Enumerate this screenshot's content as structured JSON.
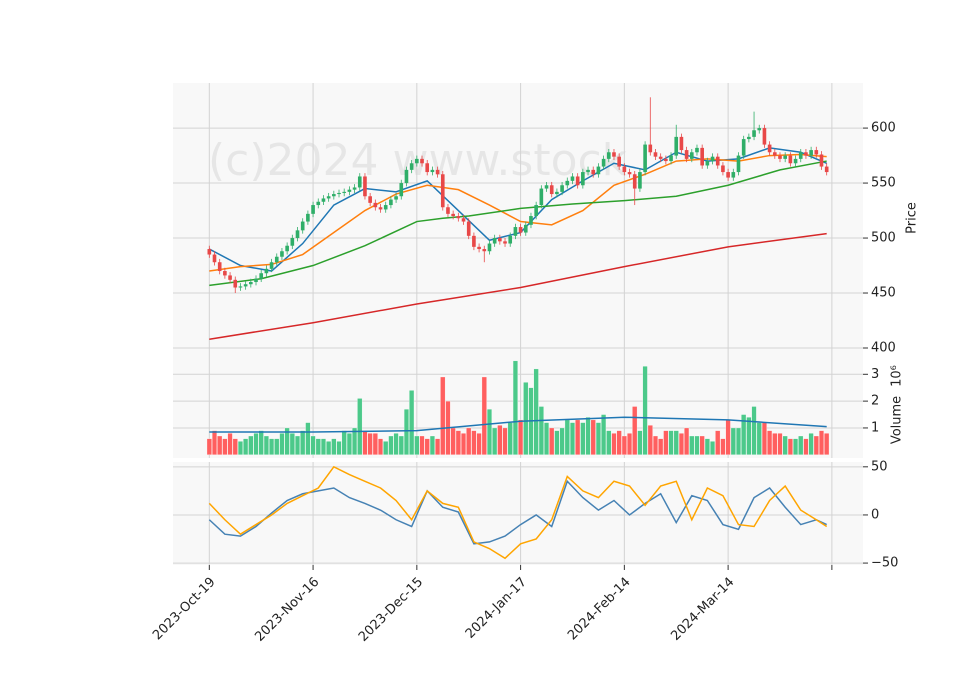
{
  "chart_data": {
    "type": "candlestick",
    "watermark": "(c)2024 www.stock",
    "xlim": [
      -7,
      126
    ],
    "xticks": [
      {
        "value": 0,
        "label": "2023-Oct-19"
      },
      {
        "value": 20,
        "label": "2023-Nov-16"
      },
      {
        "value": 40,
        "label": "2023-Dec-15"
      },
      {
        "value": 60,
        "label": "2024-Jan-17"
      },
      {
        "value": 80,
        "label": "2024-Feb-14"
      },
      {
        "value": 100,
        "label": "2024-Mar-14"
      },
      {
        "value": 120,
        "label": null
      }
    ],
    "ylabel": "Price",
    "ylim": [
      400,
      641
    ],
    "yticks": [
      400,
      450,
      500,
      550,
      600
    ],
    "grid": true,
    "up_color": "#2fae68",
    "down_color": "#e84848",
    "open": [
      490,
      485,
      478,
      470,
      466,
      462,
      455,
      456,
      458,
      460,
      463,
      468,
      472,
      478,
      483,
      488,
      493,
      500,
      507,
      515,
      522,
      530,
      533,
      536,
      538,
      540,
      541,
      542,
      544,
      546,
      556,
      538,
      532,
      528,
      526,
      530,
      535,
      538,
      550,
      562,
      568,
      572,
      568,
      560,
      562,
      558,
      528,
      522,
      520,
      518,
      515,
      502,
      492,
      490,
      488,
      495,
      500,
      497,
      495,
      502,
      510,
      505,
      512,
      520,
      530,
      545,
      548,
      540,
      542,
      548,
      552,
      556,
      548,
      560,
      562,
      558,
      565,
      572,
      578,
      574,
      565,
      560,
      558,
      545,
      560,
      585,
      578,
      574,
      572,
      570,
      575,
      592,
      580,
      572,
      578,
      582,
      566,
      570,
      574,
      566,
      560,
      555,
      560,
      575,
      590,
      592,
      598,
      600,
      585,
      578,
      575,
      572,
      575,
      568,
      572,
      578,
      575,
      580,
      576,
      565
    ],
    "high": [
      493,
      488,
      481,
      473,
      469,
      465,
      459,
      461,
      463,
      466,
      471,
      475,
      481,
      486,
      491,
      496,
      503,
      510,
      518,
      525,
      533,
      536,
      539,
      541,
      543,
      544,
      545,
      547,
      549,
      559,
      559,
      541,
      535,
      531,
      533,
      538,
      541,
      553,
      565,
      571,
      575,
      575,
      571,
      565,
      565,
      561,
      531,
      525,
      523,
      521,
      518,
      505,
      495,
      493,
      498,
      503,
      503,
      500,
      505,
      513,
      513,
      515,
      523,
      533,
      548,
      551,
      551,
      545,
      551,
      555,
      559,
      559,
      563,
      565,
      565,
      568,
      575,
      581,
      581,
      577,
      568,
      563,
      561,
      563,
      588,
      628,
      581,
      577,
      575,
      578,
      603,
      595,
      583,
      581,
      585,
      585,
      573,
      577,
      577,
      569,
      563,
      563,
      578,
      593,
      595,
      615,
      603,
      603,
      588,
      581,
      578,
      578,
      578,
      575,
      581,
      581,
      583,
      583,
      579,
      568
    ],
    "low": [
      482,
      475,
      467,
      463,
      459,
      450,
      452,
      453,
      455,
      457,
      460,
      465,
      469,
      475,
      480,
      485,
      490,
      497,
      504,
      512,
      519,
      527,
      530,
      533,
      535,
      537,
      538,
      539,
      541,
      543,
      535,
      529,
      525,
      523,
      523,
      527,
      532,
      535,
      547,
      559,
      565,
      565,
      557,
      557,
      555,
      525,
      519,
      517,
      515,
      512,
      499,
      489,
      487,
      478,
      485,
      492,
      494,
      492,
      492,
      499,
      502,
      502,
      509,
      517,
      527,
      542,
      537,
      537,
      539,
      545,
      549,
      545,
      545,
      557,
      555,
      555,
      562,
      569,
      571,
      562,
      557,
      555,
      530,
      542,
      557,
      575,
      571,
      569,
      567,
      567,
      572,
      577,
      569,
      569,
      575,
      563,
      563,
      567,
      563,
      557,
      552,
      552,
      557,
      572,
      587,
      589,
      595,
      582,
      575,
      572,
      569,
      569,
      565,
      565,
      569,
      572,
      572,
      573,
      562,
      557
    ],
    "close": [
      485,
      478,
      470,
      466,
      462,
      455,
      456,
      458,
      460,
      463,
      468,
      472,
      478,
      483,
      488,
      493,
      500,
      507,
      515,
      522,
      530,
      533,
      536,
      538,
      540,
      541,
      542,
      544,
      546,
      556,
      538,
      532,
      528,
      526,
      530,
      535,
      538,
      550,
      562,
      568,
      572,
      568,
      560,
      562,
      558,
      528,
      522,
      520,
      518,
      515,
      502,
      492,
      490,
      488,
      495,
      500,
      497,
      495,
      502,
      510,
      505,
      512,
      520,
      530,
      545,
      548,
      540,
      542,
      548,
      552,
      556,
      548,
      560,
      562,
      558,
      565,
      572,
      578,
      574,
      565,
      560,
      558,
      545,
      560,
      585,
      578,
      574,
      572,
      570,
      575,
      592,
      580,
      572,
      578,
      582,
      566,
      570,
      574,
      566,
      560,
      555,
      560,
      575,
      590,
      592,
      598,
      600,
      585,
      578,
      575,
      572,
      575,
      568,
      572,
      578,
      575,
      580,
      576,
      565,
      560
    ],
    "moving_averages": [
      {
        "color": "#1f77b4",
        "x": [
          0,
          6,
          12,
          18,
          24,
          30,
          36,
          42,
          48,
          54,
          60,
          66,
          72,
          78,
          84,
          90,
          96,
          102,
          108,
          114,
          119
        ],
        "values": [
          490,
          475,
          470,
          495,
          530,
          545,
          542,
          552,
          525,
          498,
          505,
          535,
          552,
          568,
          562,
          578,
          570,
          572,
          582,
          578,
          568
        ]
      },
      {
        "color": "#ff7f0e",
        "x": [
          0,
          6,
          12,
          18,
          24,
          30,
          36,
          42,
          48,
          54,
          60,
          66,
          72,
          78,
          84,
          90,
          96,
          102,
          108,
          114,
          119
        ],
        "values": [
          470,
          474,
          476,
          485,
          505,
          525,
          540,
          548,
          544,
          530,
          515,
          512,
          525,
          548,
          558,
          570,
          572,
          570,
          575,
          576,
          574
        ]
      },
      {
        "color": "#2ca02c",
        "x": [
          0,
          10,
          20,
          30,
          40,
          45,
          50,
          60,
          70,
          80,
          90,
          100,
          110,
          119
        ],
        "values": [
          457,
          463,
          475,
          493,
          515,
          518,
          520,
          527,
          531,
          534,
          538,
          548,
          562,
          570
        ]
      },
      {
        "color": "#d62728",
        "x": [
          0,
          20,
          40,
          60,
          80,
          100,
          119
        ],
        "values": [
          408,
          423,
          440,
          455,
          474,
          492,
          504
        ]
      }
    ],
    "volume": {
      "ylabel": "Volume",
      "offset": "10⁶",
      "ylim": [
        -0.12,
        3.98
      ],
      "yticks": [
        1,
        2,
        3
      ],
      "up_color": "#4cc98a",
      "down_color": "#ff5f5f",
      "values": [
        0.6,
        0.9,
        0.7,
        0.6,
        0.8,
        0.6,
        0.5,
        0.6,
        0.7,
        0.8,
        0.9,
        0.7,
        0.6,
        0.6,
        0.8,
        1.0,
        0.8,
        0.7,
        0.9,
        1.2,
        0.7,
        0.6,
        0.6,
        0.5,
        0.6,
        0.5,
        0.9,
        0.8,
        1.0,
        2.1,
        0.9,
        0.8,
        0.8,
        0.6,
        0.5,
        0.7,
        0.8,
        0.7,
        1.7,
        2.4,
        0.7,
        0.7,
        0.6,
        0.7,
        0.6,
        2.9,
        2.0,
        1.0,
        0.9,
        0.8,
        1.0,
        0.9,
        0.8,
        2.9,
        1.7,
        1.0,
        1.1,
        1.0,
        1.2,
        3.5,
        1.3,
        2.7,
        2.5,
        3.2,
        1.8,
        1.2,
        1.0,
        0.9,
        1.0,
        1.3,
        1.2,
        1.3,
        1.2,
        1.4,
        1.3,
        1.2,
        1.5,
        0.9,
        0.8,
        0.9,
        0.7,
        0.8,
        1.8,
        0.9,
        3.3,
        1.1,
        0.7,
        0.6,
        0.9,
        0.9,
        0.9,
        0.8,
        1.0,
        0.7,
        0.7,
        0.7,
        0.6,
        0.5,
        0.9,
        0.6,
        1.3,
        1.0,
        1.0,
        1.5,
        1.4,
        1.8,
        1.2,
        1.2,
        0.9,
        0.8,
        0.8,
        0.7,
        0.6,
        0.6,
        0.7,
        0.6,
        0.8,
        0.7,
        0.9,
        0.8
      ],
      "average": {
        "color": "#1f77b4",
        "x": [
          0,
          20,
          40,
          60,
          80,
          100,
          119
        ],
        "values": [
          0.85,
          0.85,
          0.9,
          1.25,
          1.4,
          1.3,
          1.05
        ]
      }
    },
    "oscillator": {
      "ylim": [
        -52,
        55
      ],
      "yticks": [
        {
          "value": -50,
          "label": "−50"
        },
        0,
        50
      ],
      "series": [
        {
          "color": "#4682b4",
          "x": [
            0,
            3,
            6,
            9,
            12,
            15,
            18,
            21,
            24,
            27,
            30,
            33,
            36,
            39,
            42,
            45,
            48,
            51,
            54,
            57,
            60,
            63,
            66,
            69,
            72,
            75,
            78,
            81,
            84,
            87,
            90,
            93,
            96,
            99,
            102,
            105,
            108,
            111,
            114,
            117,
            119
          ],
          "values": [
            -5,
            -20,
            -22,
            -12,
            2,
            15,
            22,
            25,
            28,
            18,
            12,
            5,
            -5,
            -12,
            25,
            8,
            3,
            -30,
            -28,
            -22,
            -10,
            0,
            -12,
            35,
            18,
            5,
            15,
            0,
            12,
            22,
            -8,
            20,
            15,
            -10,
            -15,
            18,
            28,
            8,
            -10,
            -5,
            -10
          ]
        },
        {
          "color": "#ffa500",
          "x": [
            0,
            3,
            6,
            9,
            12,
            15,
            18,
            21,
            24,
            27,
            30,
            33,
            36,
            39,
            42,
            45,
            48,
            51,
            54,
            57,
            60,
            63,
            66,
            69,
            72,
            75,
            78,
            81,
            84,
            87,
            90,
            93,
            96,
            99,
            102,
            105,
            108,
            111,
            114,
            117,
            119
          ],
          "values": [
            12,
            -5,
            -20,
            -10,
            0,
            12,
            20,
            28,
            50,
            42,
            35,
            28,
            15,
            -5,
            25,
            12,
            8,
            -28,
            -35,
            -45,
            -30,
            -25,
            -5,
            40,
            25,
            18,
            35,
            30,
            10,
            30,
            35,
            -5,
            28,
            20,
            -10,
            -12,
            15,
            30,
            5,
            -5,
            -12
          ]
        }
      ]
    }
  }
}
